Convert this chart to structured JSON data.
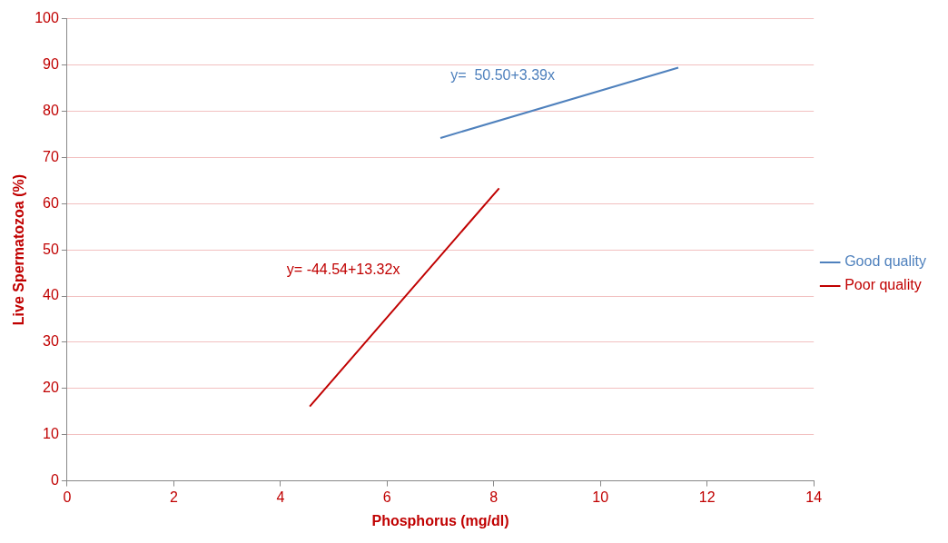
{
  "chart_data": {
    "type": "line",
    "xlabel": "Phosphorus (mg/dl)",
    "ylabel": "Live Spermatozoa (%)",
    "series": [
      {
        "name": "Good quality",
        "color": "#4f81bd",
        "x": [
          7.0,
          11.46
        ],
        "values": [
          74.2,
          89.4
        ]
      },
      {
        "name": "Poor quality",
        "color": "#c00000",
        "x": [
          4.55,
          8.1
        ],
        "values": [
          16.1,
          63.3
        ]
      }
    ],
    "annotations": [
      "y=  50.50+3.39x",
      "y= -44.54+13.32x"
    ],
    "xlim": [
      0,
      14
    ],
    "xticks": [
      0,
      2,
      4,
      6,
      8,
      10,
      12,
      14
    ],
    "ylim": [
      0,
      100
    ],
    "yticks": [
      0,
      10,
      20,
      30,
      40,
      50,
      60,
      70,
      80,
      90,
      100
    ],
    "grid": "y",
    "legend": "right",
    "marker": "none",
    "line_style": "solid"
  }
}
